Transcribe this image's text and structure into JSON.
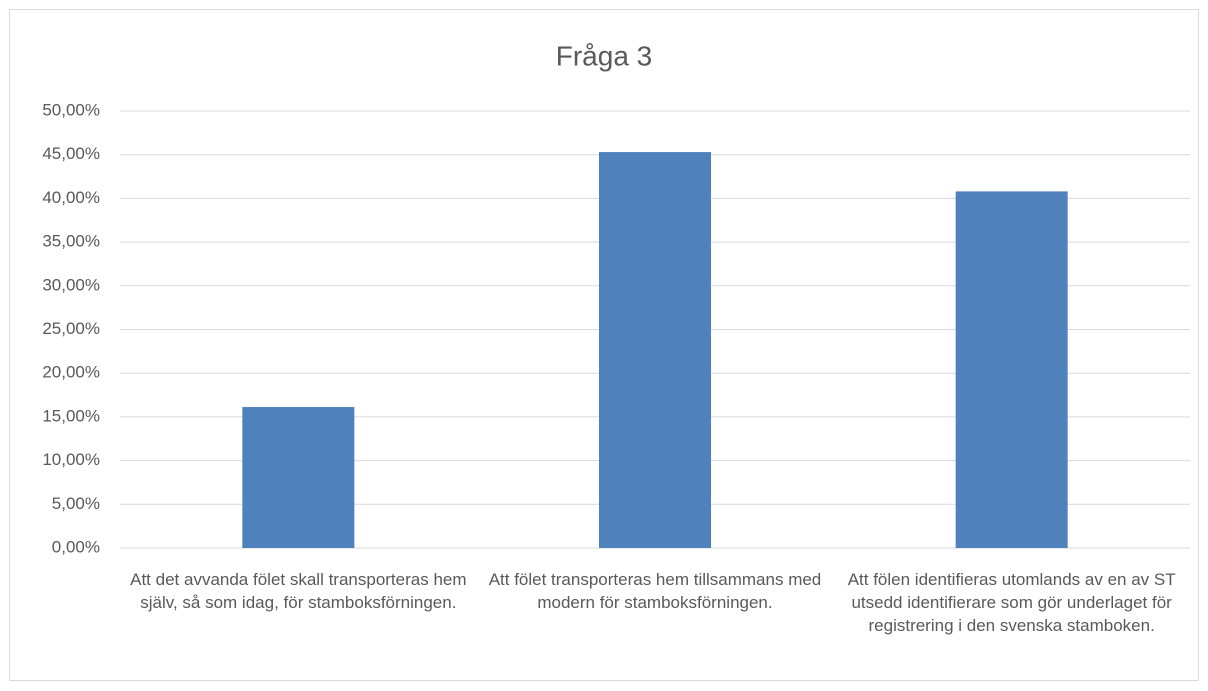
{
  "chart_data": {
    "type": "bar",
    "title": "Fråga 3",
    "categories": [
      "Att det avvanda fölet skall transporteras hem själv, så som idag, för stamboksförningen.",
      "Att fölet transporteras hem tillsammans med modern för stamboksförningen.",
      "Att fölen identifieras utomlands av en av ST utsedd identifierare som gör underlaget för registrering i den svenska stamboken."
    ],
    "values": [
      16.13,
      45.3,
      40.8
    ],
    "color": "#4f81bd",
    "ylim": [
      0,
      50
    ],
    "yticks": [
      {
        "value": 0,
        "label": "0,00%"
      },
      {
        "value": 5,
        "label": "5,00%"
      },
      {
        "value": 10,
        "label": "10,00%"
      },
      {
        "value": 15,
        "label": "15,00%"
      },
      {
        "value": 20,
        "label": "20,00%"
      },
      {
        "value": 25,
        "label": "25,00%"
      },
      {
        "value": 30,
        "label": "30,00%"
      },
      {
        "value": 35,
        "label": "35,00%"
      },
      {
        "value": 40,
        "label": "40,00%"
      },
      {
        "value": 45,
        "label": "45,00%"
      },
      {
        "value": 50,
        "label": "50,00%"
      }
    ],
    "grid": true
  }
}
